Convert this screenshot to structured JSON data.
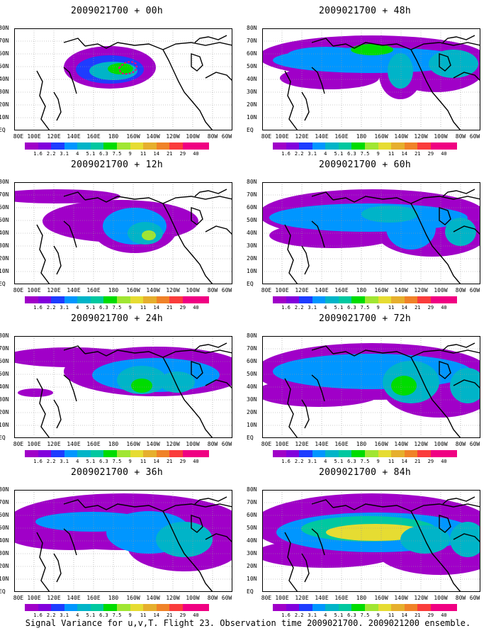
{
  "footer": "Signal Variance for u,v,T. Flight 23. Observation time 2009021700. 2009021200 ensemble.",
  "lat_labels": [
    "80N",
    "70N",
    "60N",
    "50N",
    "40N",
    "30N",
    "20N",
    "10N",
    "EQ"
  ],
  "lon_labels": [
    "80E",
    "100E",
    "120E",
    "140E",
    "160E",
    "180",
    "160W",
    "140W",
    "120W",
    "100W",
    "80W",
    "60W"
  ],
  "colorbar": {
    "levels": [
      "1.6",
      "2.2",
      "3.1",
      "4",
      "5.1",
      "6.3",
      "7.5",
      "9",
      "11",
      "14",
      "21",
      "29",
      "40"
    ],
    "colors": [
      "#a000c8",
      "#8200dc",
      "#1e3cff",
      "#0096ff",
      "#00b4c8",
      "#00c8a0",
      "#00dc00",
      "#a0e632",
      "#e6dc32",
      "#e6af2d",
      "#f08228",
      "#fa3c3c",
      "#f00082"
    ]
  },
  "panels": [
    {
      "title": "2009021700 + 00h"
    },
    {
      "title": "2009021700 + 48h"
    },
    {
      "title": "2009021700 + 12h"
    },
    {
      "title": "2009021700 + 60h"
    },
    {
      "title": "2009021700 + 24h"
    },
    {
      "title": "2009021700 + 72h"
    },
    {
      "title": "2009021700 + 36h"
    },
    {
      "title": "2009021700 + 84h"
    }
  ]
}
